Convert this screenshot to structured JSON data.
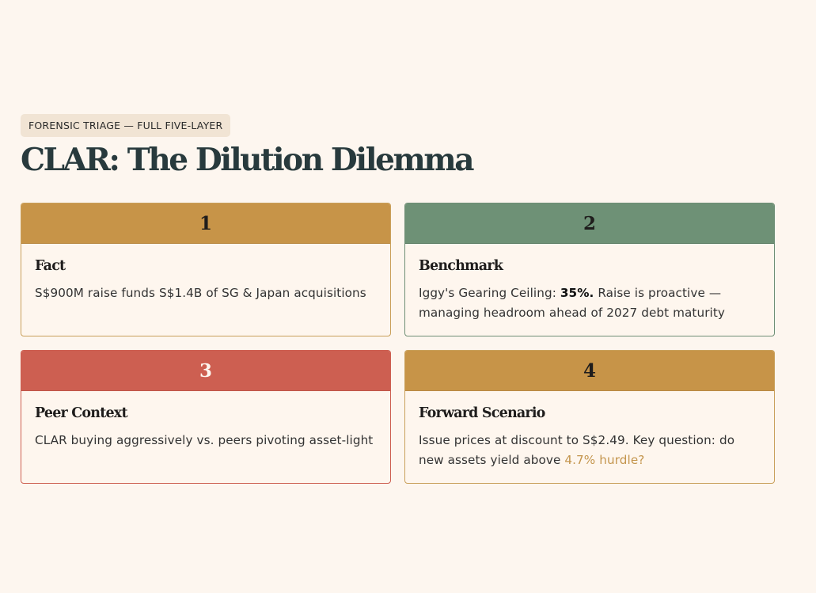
{
  "tag": "FORENSIC TRIAGE — FULL FIVE-LAYER",
  "title": "CLAR: The Dilution Dilemma",
  "cards": [
    {
      "number": "1",
      "title": "Fact",
      "text": "S$900M raise funds S$1.4B of SG & Japan acquisitions",
      "header_color": "#c79448"
    },
    {
      "number": "2",
      "title": "Benchmark",
      "text_before": "Iggy's Gearing Ceiling: ",
      "text_bold": "35%.",
      "text_after": " Raise is proactive — managing headroom ahead of 2027 debt maturity",
      "header_color": "#6e9176"
    },
    {
      "number": "3",
      "title": "Peer Context",
      "text": "CLAR buying aggressively vs. peers pivoting asset-light",
      "header_color": "#cd5f51"
    },
    {
      "number": "4",
      "title": "Forward Scenario",
      "text_before": "Issue prices at discount to S$2.49. Key question: do new assets yield above ",
      "text_highlight": "4.7% hurdle?",
      "header_color": "#c79448"
    }
  ]
}
